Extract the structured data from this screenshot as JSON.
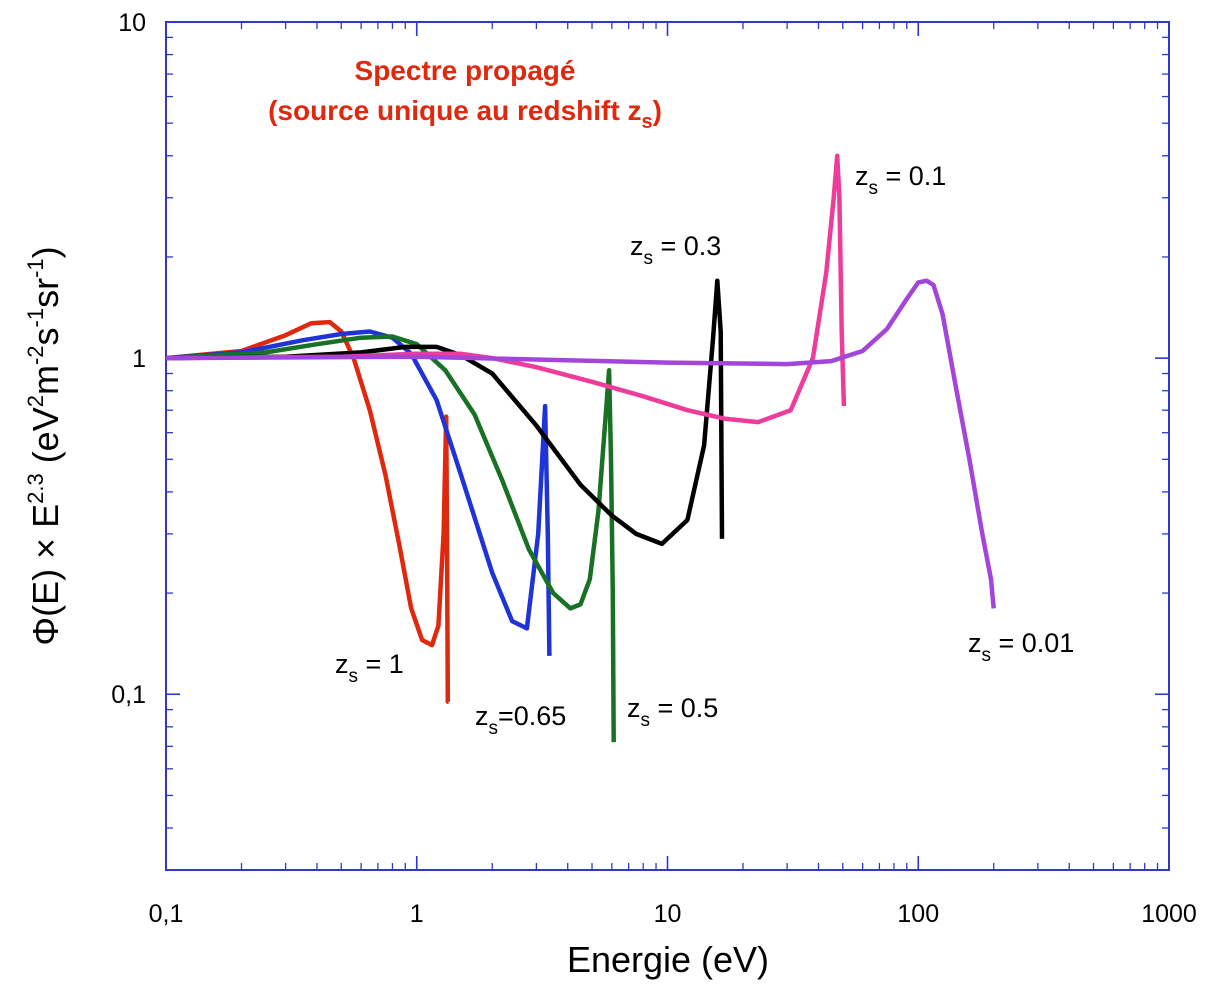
{
  "chart_data": {
    "type": "line",
    "title": {
      "line1": "Spectre  propagé",
      "line2_main": "(source unique au redshift z",
      "line2_sub": "s",
      "line2_end": ")",
      "color": "#e0280f"
    },
    "xlabel": "Energie  (eV)",
    "ylabel": {
      "phi": "Φ(E) × E",
      "exp": "2.3",
      "open": "  (eV",
      "e1": "2",
      "m": "m",
      "e2": "-2",
      "s": "s",
      "e3": "-1",
      "sr": "sr",
      "e4": "-1",
      "close": ")"
    },
    "x_scale": "log",
    "y_scale": "log",
    "xlim": [
      0.1,
      1000
    ],
    "ylim": [
      0.03,
      10
    ],
    "x_ticks": [
      {
        "value": 0.1,
        "label": "0,1"
      },
      {
        "value": 1,
        "label": "1"
      },
      {
        "value": 10,
        "label": "10"
      },
      {
        "value": 100,
        "label": "100"
      },
      {
        "value": 1000,
        "label": "1000"
      }
    ],
    "y_ticks": [
      {
        "value": 0.1,
        "label": "0,1"
      },
      {
        "value": 1,
        "label": "1"
      },
      {
        "value": 10,
        "label": "10"
      }
    ],
    "axis_color": "#2f38c8",
    "grid": false,
    "series": [
      {
        "color": "#e0280f",
        "label": {
          "pre": "z",
          "sub": "s",
          "post": " = 1"
        },
        "x": [
          0.1,
          0.2,
          0.3,
          0.38,
          0.45,
          0.5,
          0.56,
          0.65,
          0.75,
          0.85,
          0.95,
          1.05,
          1.15,
          1.22,
          1.28,
          1.31,
          1.32,
          1.33,
          1.34
        ],
        "y": [
          1.0,
          1.05,
          1.17,
          1.27,
          1.28,
          1.2,
          1.0,
          0.7,
          0.45,
          0.28,
          0.18,
          0.145,
          0.14,
          0.16,
          0.3,
          0.67,
          0.3,
          0.095,
          0.095
        ]
      },
      {
        "color": "#1f33d6",
        "label": {
          "pre": "z",
          "sub": "s",
          "post": "=0.65"
        },
        "x": [
          0.1,
          0.2,
          0.35,
          0.5,
          0.65,
          0.8,
          0.95,
          1.2,
          1.5,
          2.0,
          2.4,
          2.75,
          3.05,
          3.25,
          3.33,
          3.38
        ],
        "y": [
          1.0,
          1.04,
          1.13,
          1.18,
          1.2,
          1.15,
          1.03,
          0.75,
          0.45,
          0.23,
          0.165,
          0.157,
          0.3,
          0.72,
          0.3,
          0.13
        ]
      },
      {
        "color": "#187124",
        "label": {
          "pre": "z",
          "sub": "s",
          "post": " = 0.5"
        },
        "x": [
          0.1,
          0.25,
          0.4,
          0.6,
          0.8,
          1.0,
          1.3,
          1.7,
          2.2,
          2.8,
          3.5,
          4.1,
          4.5,
          4.9,
          5.3,
          5.6,
          5.85,
          5.95,
          6.05,
          6.1
        ],
        "y": [
          1.0,
          1.04,
          1.1,
          1.15,
          1.16,
          1.1,
          0.92,
          0.68,
          0.43,
          0.27,
          0.2,
          0.18,
          0.185,
          0.22,
          0.35,
          0.6,
          0.92,
          0.5,
          0.2,
          0.072
        ]
      },
      {
        "color": "#000000",
        "label": {
          "pre": "z",
          "sub": "s",
          "post": " = 0.3"
        },
        "x": [
          0.1,
          0.3,
          0.6,
          0.9,
          1.2,
          1.5,
          2.0,
          3.0,
          4.5,
          6.0,
          7.5,
          9.5,
          12.0,
          14.0,
          15.2,
          15.8,
          16.3,
          16.5
        ],
        "y": [
          1.0,
          1.01,
          1.04,
          1.08,
          1.08,
          1.02,
          0.9,
          0.63,
          0.42,
          0.34,
          0.3,
          0.28,
          0.33,
          0.55,
          1.15,
          1.7,
          1.2,
          0.29
        ]
      },
      {
        "color": "#ee3c9a",
        "label": {
          "pre": "z",
          "sub": "s",
          "post": " = 0.1"
        },
        "x": [
          0.1,
          0.5,
          1.0,
          1.5,
          2.0,
          3.0,
          5.0,
          8.0,
          12.0,
          17.0,
          23.0,
          31.0,
          38.0,
          43.0,
          46.0,
          47.5,
          48.5,
          49.5,
          50.5
        ],
        "y": [
          1.0,
          1.01,
          1.03,
          1.03,
          1.0,
          0.94,
          0.85,
          0.77,
          0.7,
          0.66,
          0.645,
          0.7,
          1.0,
          1.8,
          3.0,
          4.0,
          3.0,
          1.2,
          0.72
        ]
      },
      {
        "color": "#a245d8",
        "label": {
          "pre": "z",
          "sub": "s",
          "post": " = 0.01"
        },
        "x": [
          0.1,
          1.0,
          10.0,
          30.0,
          45.0,
          60.0,
          75.0,
          90.0,
          100.0,
          108.0,
          115.0,
          125.0,
          140.0,
          160.0,
          180.0,
          195.0,
          200.0
        ],
        "y": [
          1.0,
          1.01,
          0.97,
          0.96,
          0.98,
          1.05,
          1.22,
          1.5,
          1.68,
          1.7,
          1.65,
          1.35,
          0.85,
          0.5,
          0.3,
          0.22,
          0.18
        ]
      }
    ]
  }
}
